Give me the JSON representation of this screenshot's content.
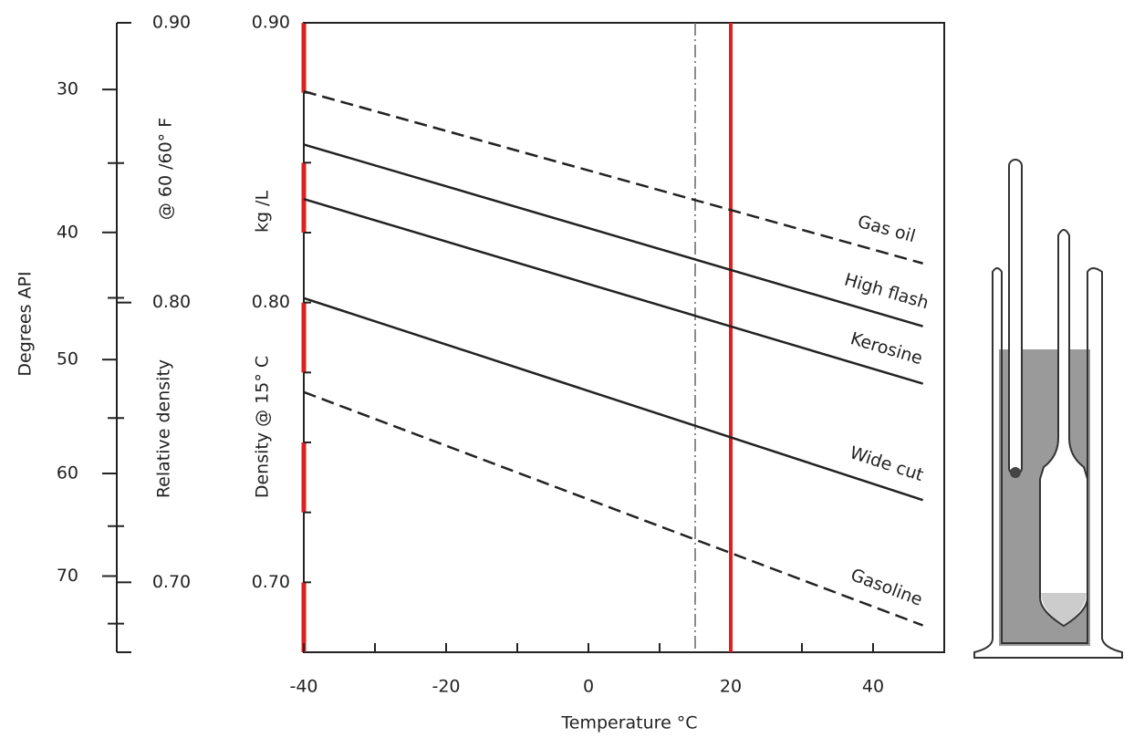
{
  "chart_data": {
    "type": "line",
    "x_label": "Temperature °C",
    "y_label": "Density @ 15° C",
    "y_unit_label": "kg /L",
    "x": [
      -40,
      47
    ],
    "xlim": [
      -40,
      50
    ],
    "xticks": [
      -40,
      -20,
      0,
      20,
      40
    ],
    "xminor_ticks": [
      -30,
      -10,
      10,
      30
    ],
    "ylim": [
      0.675,
      0.9
    ],
    "yticks": [
      {
        "value": 0.9,
        "label": "0.90"
      },
      {
        "value": 0.8,
        "label": "0.80"
      },
      {
        "value": 0.7,
        "label": "0.70"
      }
    ],
    "yminor_ticks": [
      0.875,
      0.85,
      0.825,
      0.775,
      0.75,
      0.725
    ],
    "series": [
      {
        "name": "Gas oil",
        "color": "#222222",
        "dashed": true,
        "values": [
          0.8755,
          0.814
        ]
      },
      {
        "name": "High flash",
        "color": "#222222",
        "dashed": false,
        "values": [
          0.8565,
          0.7915
        ]
      },
      {
        "name": "Kerosine",
        "color": "#222222",
        "dashed": false,
        "values": [
          0.837,
          0.771
        ]
      },
      {
        "name": "Wide cut",
        "color": "#222222",
        "dashed": false,
        "values": [
          0.8016,
          0.7294
        ]
      },
      {
        "name": "Gasoline",
        "color": "#222222",
        "dashed": true,
        "values": [
          0.768,
          0.6846
        ]
      }
    ],
    "reference_lines": [
      {
        "x": 15,
        "color": "#666666",
        "style": "dashdot"
      },
      {
        "x": 20,
        "color": "#e02020",
        "style": "solid"
      }
    ],
    "axis_highlight_color": "#e02020",
    "relative_density_axis": {
      "label": "Relative density",
      "sublabel": "@ 60 /60° F",
      "ticks": [
        {
          "value": 0.9,
          "label": "0.90"
        },
        {
          "value": 0.8,
          "label": "0.80"
        },
        {
          "value": 0.7,
          "label": "0.70"
        }
      ]
    },
    "api_axis": {
      "label": "Degrees API",
      "ticks": [
        30,
        40,
        50,
        60,
        70
      ],
      "minor_ticks": [
        35,
        45,
        55,
        65,
        75
      ]
    }
  }
}
